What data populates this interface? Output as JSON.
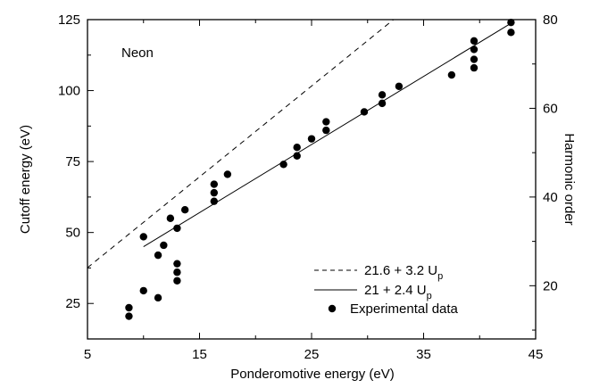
{
  "chart_data": {
    "type": "scatter",
    "annotation": "Neon",
    "xlabel": "Ponderomotive energy (eV)",
    "ylabel": "Cutoff energy (eV)",
    "y2label": "Harmonic order",
    "xlim": [
      5,
      45
    ],
    "ylim": [
      12.5,
      125
    ],
    "y2lim": [
      8,
      80
    ],
    "xticks": [
      5,
      15,
      25,
      35,
      45
    ],
    "xtick_labels": [
      "5",
      "15",
      "25",
      "35",
      "45"
    ],
    "yticks": [
      25,
      50,
      75,
      100,
      125
    ],
    "ytick_labels": [
      "25",
      "50",
      "75",
      "100",
      "125"
    ],
    "y2ticks": [
      20,
      40,
      60,
      80
    ],
    "y2tick_labels": [
      "20",
      "40",
      "60",
      "80"
    ],
    "grid": false,
    "legend_position": "bottom-right",
    "series": [
      {
        "name": "21.6 + 3.2 U",
        "subscript": "p",
        "kind": "line",
        "style": "dashed",
        "intercept": 21.6,
        "slope": 3.2,
        "x_range": [
          5,
          45
        ]
      },
      {
        "name": "21 + 2.4 U",
        "subscript": "p",
        "kind": "line",
        "style": "solid",
        "intercept": 21,
        "slope": 2.4,
        "x_range": [
          10,
          43
        ]
      },
      {
        "name": "Experimental data",
        "kind": "scatter",
        "points": [
          [
            8.7,
            23.5
          ],
          [
            8.7,
            20.5
          ],
          [
            10.0,
            48.5
          ],
          [
            10.0,
            29.5
          ],
          [
            11.3,
            42.0
          ],
          [
            11.3,
            27.0
          ],
          [
            11.8,
            45.5
          ],
          [
            12.4,
            55.0
          ],
          [
            13.0,
            51.5
          ],
          [
            13.0,
            39.0
          ],
          [
            13.0,
            36.0
          ],
          [
            13.0,
            33.0
          ],
          [
            13.7,
            58.0
          ],
          [
            16.3,
            67.0
          ],
          [
            16.3,
            64.0
          ],
          [
            16.3,
            61.0
          ],
          [
            17.5,
            70.5
          ],
          [
            22.5,
            74.0
          ],
          [
            23.7,
            80.0
          ],
          [
            23.7,
            77.0
          ],
          [
            25.0,
            83.0
          ],
          [
            26.3,
            89.0
          ],
          [
            26.3,
            86.0
          ],
          [
            29.7,
            92.5
          ],
          [
            31.3,
            98.5
          ],
          [
            31.3,
            95.5
          ],
          [
            32.8,
            101.5
          ],
          [
            37.5,
            105.5
          ],
          [
            39.5,
            117.5
          ],
          [
            39.5,
            114.5
          ],
          [
            39.5,
            111.0
          ],
          [
            39.5,
            108.0
          ],
          [
            42.8,
            124.0
          ],
          [
            42.8,
            120.5
          ]
        ]
      }
    ]
  }
}
